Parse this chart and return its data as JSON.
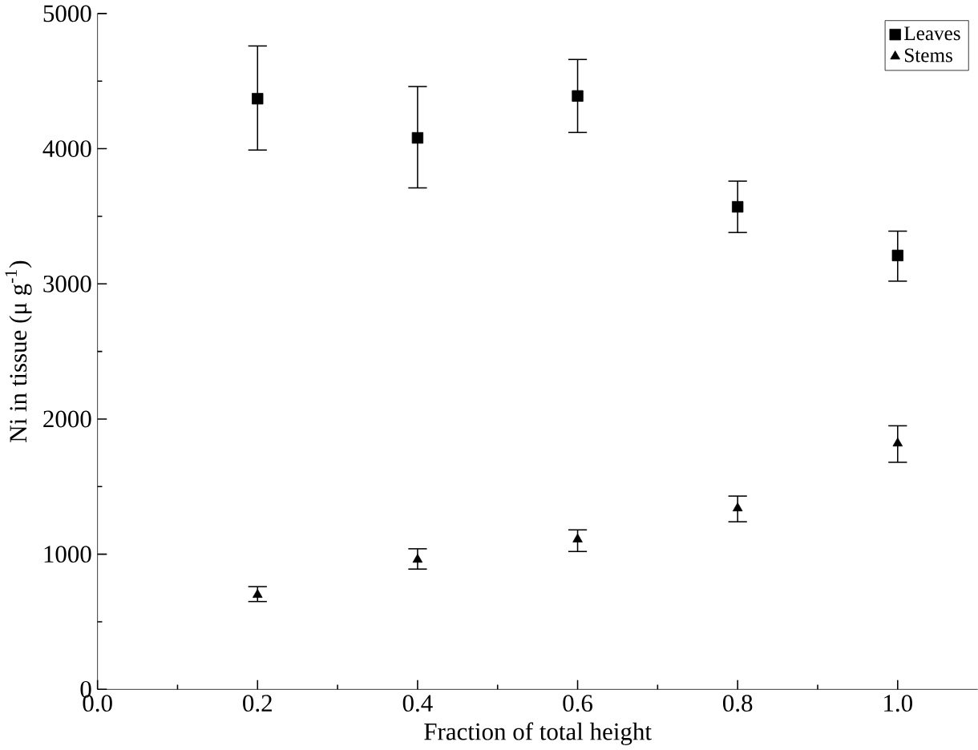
{
  "chart_data": {
    "type": "scatter",
    "xlabel": "Fraction of total height",
    "ylabel": "Ni in tissue (μ g$^{-1}$)",
    "x": [
      0.2,
      0.4,
      0.6,
      0.8,
      1.0
    ],
    "xlim": [
      0,
      1.1
    ],
    "xticks": [
      {
        "value": 0,
        "label": "0.0"
      },
      0.2,
      0.4,
      0.6,
      0.8,
      {
        "value": 1,
        "label": "1.0"
      }
    ],
    "ylim": [
      0,
      5000
    ],
    "yticks": [
      0,
      1000,
      2000,
      3000,
      4000,
      5000
    ],
    "legend": "top right",
    "grid": false,
    "series": [
      {
        "name": "Leaves",
        "color": "#000000",
        "marker": "square",
        "values": [
          4370,
          4080,
          4390,
          3570,
          3210
        ],
        "errors": [
          [
            3990,
            4760
          ],
          [
            3710,
            4460
          ],
          [
            4120,
            4660
          ],
          [
            3380,
            3760
          ],
          [
            3020,
            3390
          ]
        ]
      },
      {
        "name": "Stems",
        "color": "#000000",
        "marker": "triangle",
        "values": [
          700,
          960,
          1110,
          1340,
          1820
        ],
        "errors": [
          [
            650,
            760
          ],
          [
            890,
            1040
          ],
          [
            1020,
            1180
          ],
          [
            1240,
            1430
          ],
          [
            1680,
            1950
          ]
        ]
      }
    ]
  }
}
